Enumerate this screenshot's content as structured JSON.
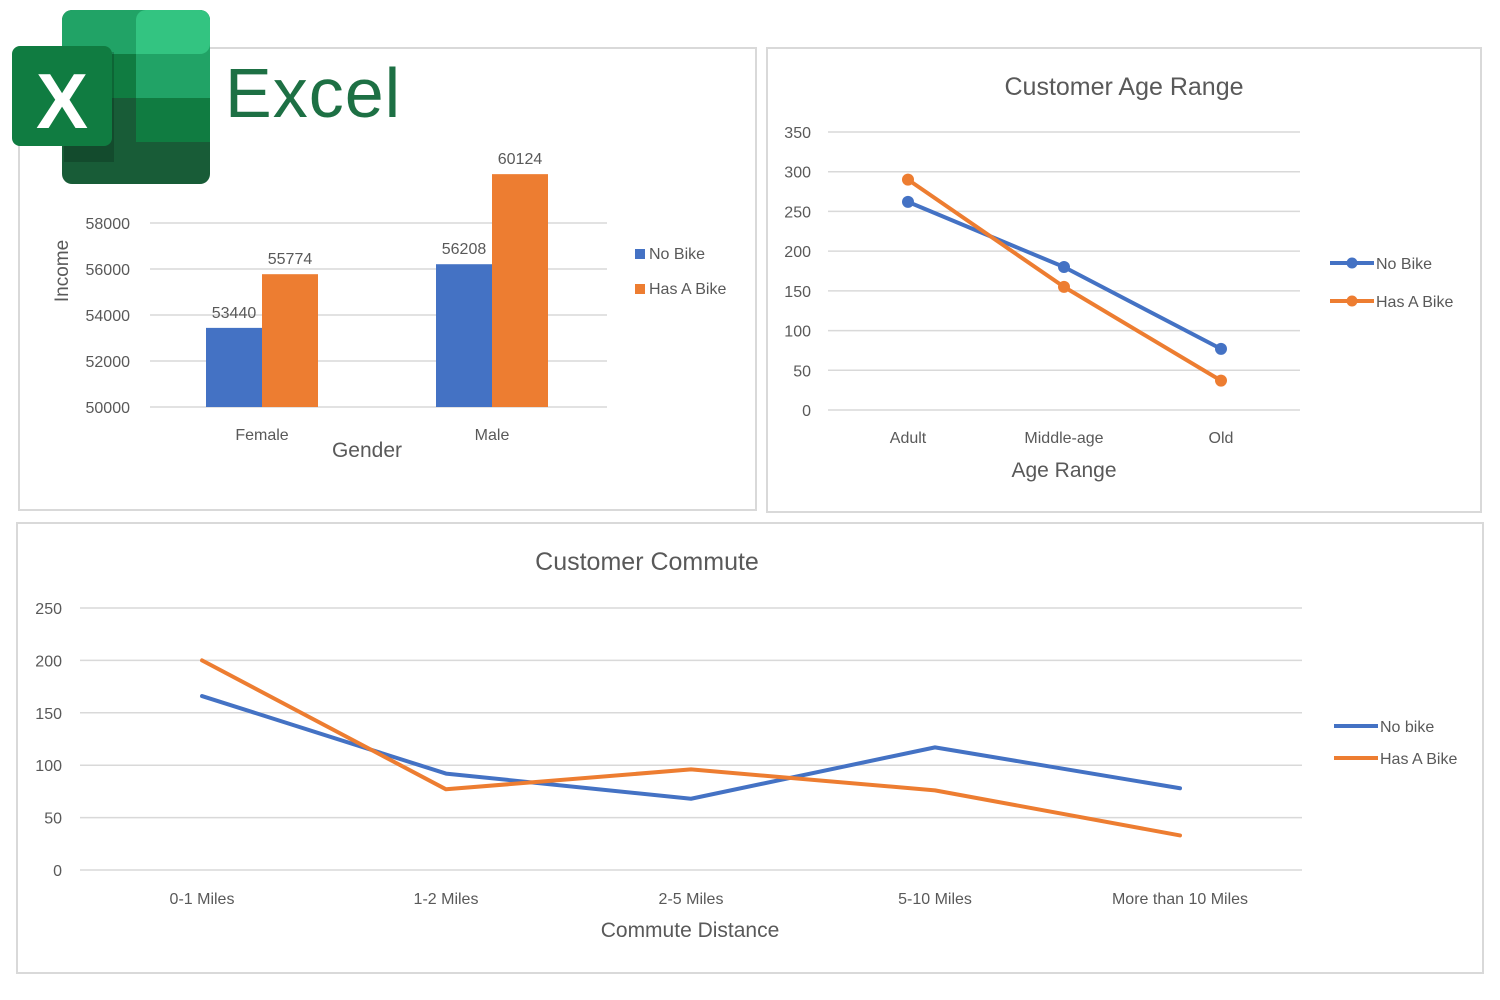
{
  "logo": {
    "wordmark": "Excel",
    "letter": "X",
    "colors": {
      "dark": "#185c37",
      "mid": "#107c41",
      "light": "#21a366",
      "lighter": "#33c481",
      "wordmark": "#1d7044"
    }
  },
  "colors": {
    "no_bike": "#4472c4",
    "has_bike": "#ed7d31",
    "grid": "#d9d9d9",
    "text": "#595959"
  },
  "chart_data": [
    {
      "id": "gender",
      "type": "bar",
      "title": "",
      "xlabel": "Gender",
      "ylabel": "Income",
      "categories": [
        "Female",
        "Male"
      ],
      "series": [
        {
          "name": "No Bike",
          "values": [
            53440,
            56208
          ]
        },
        {
          "name": "Has A Bike",
          "values": [
            55774,
            60124
          ]
        }
      ],
      "ylim": [
        50000,
        62000
      ],
      "yticks": [
        50000,
        52000,
        54000,
        56000,
        58000
      ],
      "data_labels": true,
      "grid": true,
      "legend": "right"
    },
    {
      "id": "age",
      "type": "line",
      "title": "Customer Age Range",
      "xlabel": "Age Range",
      "ylabel": "",
      "categories": [
        "Adult",
        "Middle-age",
        "Old"
      ],
      "series": [
        {
          "name": "No Bike",
          "values": [
            262,
            180,
            77
          ]
        },
        {
          "name": "Has A Bike",
          "values": [
            290,
            155,
            37
          ]
        }
      ],
      "ylim": [
        0,
        350
      ],
      "yticks": [
        0,
        50,
        100,
        150,
        200,
        250,
        300,
        350
      ],
      "markers": true,
      "grid": true,
      "legend": "right"
    },
    {
      "id": "commute",
      "type": "line",
      "title": "Customer Commute",
      "xlabel": "Commute Distance",
      "ylabel": "",
      "categories": [
        "0-1 Miles",
        "1-2 Miles",
        "2-5 Miles",
        "5-10 Miles",
        "More than 10 Miles"
      ],
      "series": [
        {
          "name": "No bike",
          "values": [
            166,
            92,
            68,
            117,
            78
          ]
        },
        {
          "name": "Has A Bike",
          "values": [
            200,
            77,
            96,
            76,
            33
          ]
        }
      ],
      "ylim": [
        0,
        250
      ],
      "yticks": [
        0,
        50,
        100,
        150,
        200,
        250
      ],
      "markers": false,
      "grid": true,
      "legend": "right"
    }
  ]
}
